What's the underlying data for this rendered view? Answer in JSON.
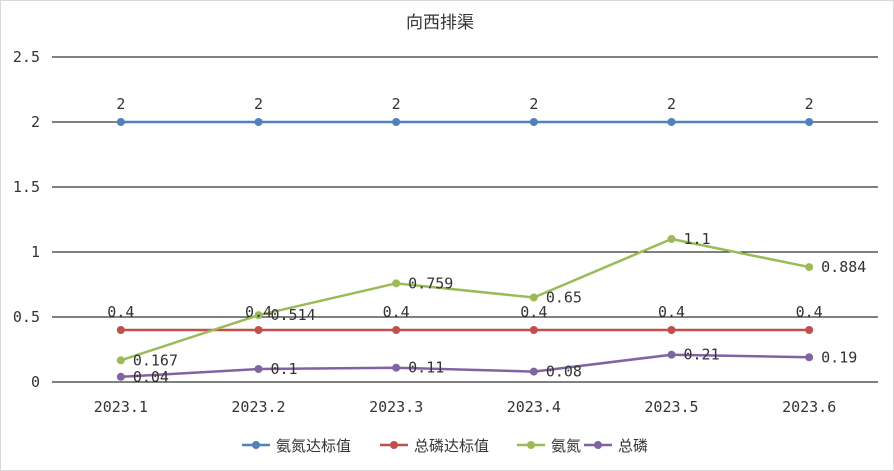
{
  "chart_data": {
    "type": "line",
    "title": "向西排渠",
    "categories": [
      "2023.1",
      "2023.2",
      "2023.3",
      "2023.4",
      "2023.5",
      "2023.6"
    ],
    "y_ticks": [
      "0",
      "0.5",
      "1",
      "1.5",
      "2",
      "2.5"
    ],
    "ylim": [
      0,
      2.5
    ],
    "grid": true,
    "legend_position": "bottom",
    "series": [
      {
        "name": "氨氮达标值",
        "color": "#4f81bd",
        "values": [
          2,
          2,
          2,
          2,
          2,
          2
        ],
        "labels": [
          "2",
          "2",
          "2",
          "2",
          "2",
          "2"
        ],
        "label_position": "above"
      },
      {
        "name": "总磷达标值",
        "color": "#c0504d",
        "values": [
          0.4,
          0.4,
          0.4,
          0.4,
          0.4,
          0.4
        ],
        "labels": [
          "0.4",
          "0.4",
          "0.4",
          "0.4",
          "0.4",
          "0.4"
        ],
        "label_position": "above"
      },
      {
        "name": "氨氮",
        "color": "#9bbb59",
        "values": [
          0.167,
          0.514,
          0.759,
          0.65,
          1.1,
          0.884
        ],
        "labels": [
          "0.167",
          "0.514",
          "0.759",
          "0.65",
          "1.1",
          "0.884"
        ],
        "label_position": "right"
      },
      {
        "name": "总磷",
        "color": "#8064a2",
        "values": [
          0.04,
          0.1,
          0.11,
          0.08,
          0.21,
          0.19
        ],
        "labels": [
          "0.04",
          "0.1",
          "0.11",
          "0.08",
          "0.21",
          "0.19"
        ],
        "label_position": "right"
      }
    ]
  }
}
